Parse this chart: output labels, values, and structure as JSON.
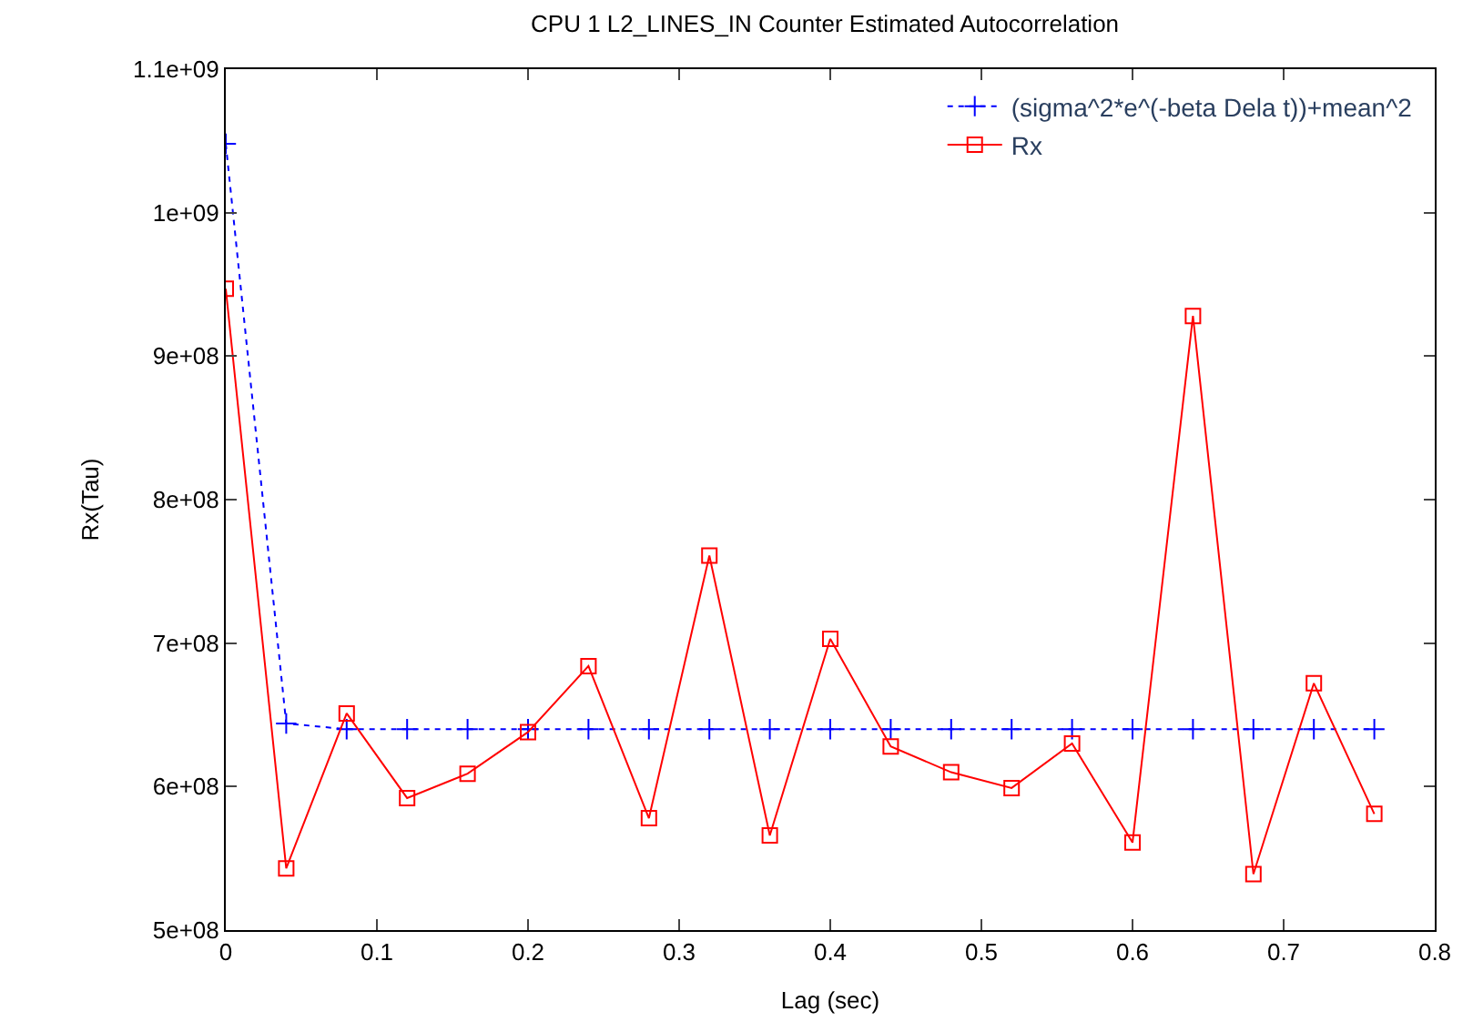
{
  "chart_data": {
    "type": "line",
    "title": "CPU 1 L2_LINES_IN Counter Estimated Autocorrelation",
    "xlabel": "Lag (sec)",
    "ylabel": "Rx(Tau)",
    "x": [
      0,
      0.04,
      0.08,
      0.12,
      0.16,
      0.2,
      0.24,
      0.28,
      0.32,
      0.36,
      0.4,
      0.44,
      0.48,
      0.52,
      0.56,
      0.6,
      0.64,
      0.68,
      0.72,
      0.76
    ],
    "series": [
      {
        "name": "(sigma^2*e^(-beta Dela t))+mean^2",
        "color": "#0000ff",
        "marker": "cross",
        "line_style": "dotted",
        "values": [
          1048000000,
          644000000,
          640000000,
          640000000,
          640000000,
          640000000,
          640000000,
          640000000,
          640000000,
          640000000,
          640000000,
          640000000,
          640000000,
          640000000,
          640000000,
          640000000,
          640000000,
          640000000,
          640000000,
          640000000
        ]
      },
      {
        "name": "Rx",
        "color": "#ff0000",
        "marker": "square",
        "line_style": "solid",
        "values": [
          947000000,
          543000000,
          651000000,
          592000000,
          609000000,
          638000000,
          684000000,
          578000000,
          761000000,
          566000000,
          703000000,
          628000000,
          610000000,
          599000000,
          630000000,
          561000000,
          928000000,
          539000000,
          672000000,
          581000000
        ]
      }
    ],
    "xlim": [
      0,
      0.8
    ],
    "xticks": [
      0,
      0.1,
      0.2,
      0.3,
      0.4,
      0.5,
      0.6,
      0.7,
      0.8
    ],
    "ylim": [
      500000000,
      1100000000
    ],
    "yticks": [
      {
        "value": 500000000,
        "label": "5e+08"
      },
      {
        "value": 600000000,
        "label": "6e+08"
      },
      {
        "value": 700000000,
        "label": "7e+08"
      },
      {
        "value": 800000000,
        "label": "8e+08"
      },
      {
        "value": 900000000,
        "label": "9e+08"
      },
      {
        "value": 1000000000,
        "label": "1e+09"
      },
      {
        "value": 1100000000,
        "label": "1.1e+09"
      }
    ],
    "legend": "top right"
  }
}
